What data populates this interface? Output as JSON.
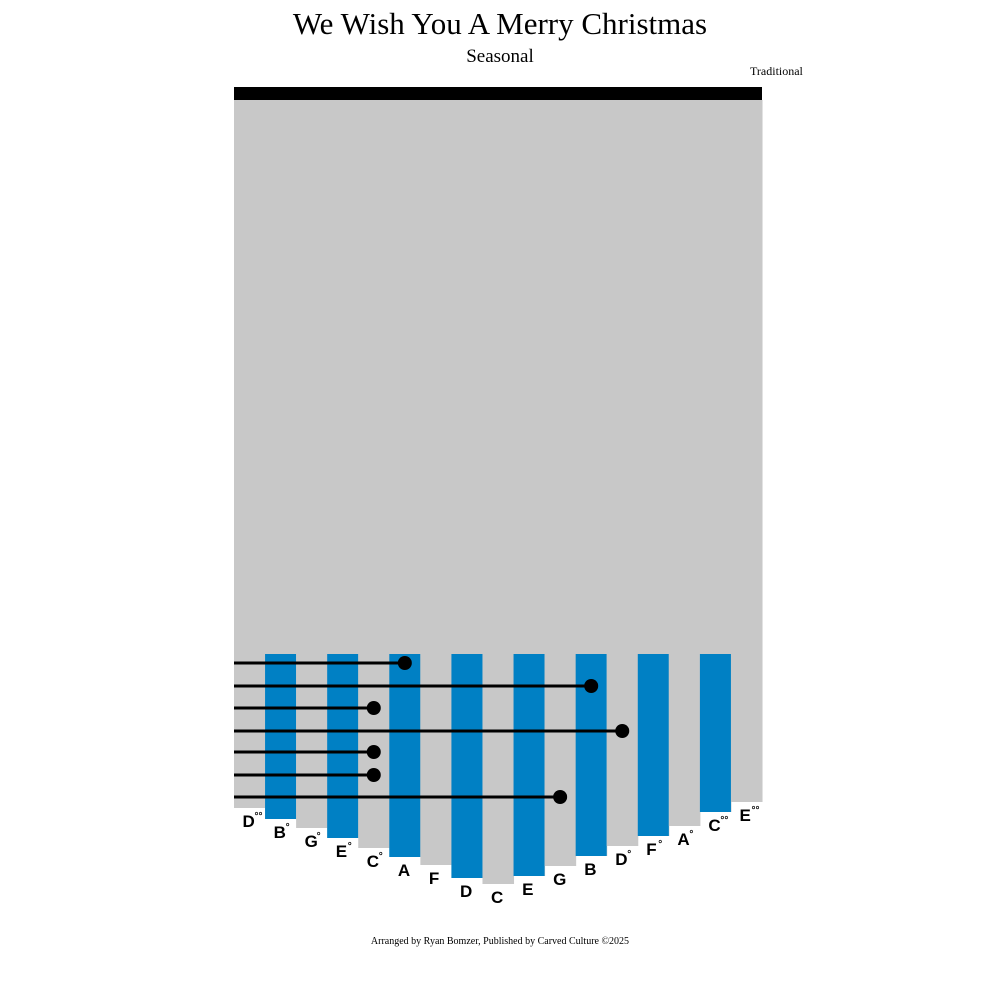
{
  "header": {
    "title": "We Wish You A Merry Christmas",
    "subtitle": "Seasonal",
    "composer": "Traditional"
  },
  "footer": "Arranged by Ryan Bomzer, Published by Carved Culture ©2025",
  "colors": {
    "tine_blue": "#0080c4",
    "body_gray": "#c8c8c8",
    "bar": "#000000"
  },
  "tines": [
    {
      "note": "D",
      "octave_marks": "°°"
    },
    {
      "note": "B",
      "octave_marks": "°"
    },
    {
      "note": "G",
      "octave_marks": "°"
    },
    {
      "note": "E",
      "octave_marks": "°"
    },
    {
      "note": "C",
      "octave_marks": "°"
    },
    {
      "note": "A",
      "octave_marks": ""
    },
    {
      "note": "F",
      "octave_marks": ""
    },
    {
      "note": "D",
      "octave_marks": ""
    },
    {
      "note": "C",
      "octave_marks": ""
    },
    {
      "note": "E",
      "octave_marks": ""
    },
    {
      "note": "G",
      "octave_marks": ""
    },
    {
      "note": "B",
      "octave_marks": ""
    },
    {
      "note": "D",
      "octave_marks": "°"
    },
    {
      "note": "F",
      "octave_marks": "°"
    },
    {
      "note": "A",
      "octave_marks": "°"
    },
    {
      "note": "C",
      "octave_marks": "°°"
    },
    {
      "note": "E",
      "octave_marks": "°°"
    }
  ],
  "notes_top_to_bottom": [
    "A",
    "B",
    "C°",
    "D°",
    "C°",
    "C°",
    "G"
  ]
}
